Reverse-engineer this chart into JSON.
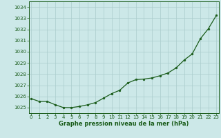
{
  "x": [
    0,
    1,
    2,
    3,
    4,
    5,
    6,
    7,
    8,
    9,
    10,
    11,
    12,
    13,
    14,
    15,
    16,
    17,
    18,
    19,
    20,
    21,
    22,
    23
  ],
  "y": [
    1025.8,
    1025.55,
    1025.55,
    1025.25,
    1025.0,
    1025.0,
    1025.1,
    1025.25,
    1025.45,
    1025.85,
    1026.25,
    1026.55,
    1027.2,
    1027.5,
    1027.55,
    1027.65,
    1027.85,
    1028.1,
    1028.55,
    1029.25,
    1029.8,
    1031.15,
    1032.05,
    1033.25
  ],
  "title": "Graphe pression niveau de la mer (hPa)",
  "background_color": "#cce8e8",
  "grid_color": "#aacccc",
  "line_color": "#1a5c1a",
  "marker_color": "#1a5c1a",
  "ylim_min": 1024.5,
  "ylim_max": 1034.5,
  "xlim_min": -0.3,
  "xlim_max": 23.3,
  "yticks": [
    1025,
    1026,
    1027,
    1028,
    1029,
    1030,
    1031,
    1032,
    1033,
    1034
  ],
  "xticks": [
    0,
    1,
    2,
    3,
    4,
    5,
    6,
    7,
    8,
    9,
    10,
    11,
    12,
    13,
    14,
    15,
    16,
    17,
    18,
    19,
    20,
    21,
    22,
    23
  ],
  "tick_fontsize": 5.0,
  "xlabel_fontsize": 6.0
}
